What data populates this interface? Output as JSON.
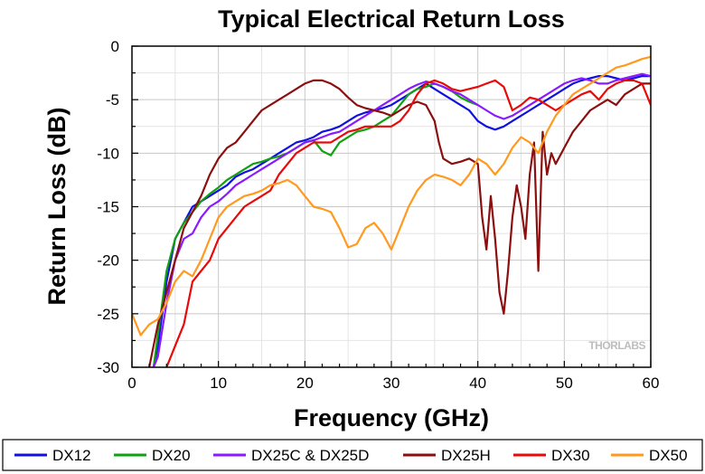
{
  "chart_data": {
    "type": "line",
    "title": "Typical Electrical Return Loss",
    "xlabel": "Frequency (GHz)",
    "ylabel": "Return Loss (dB)",
    "xlim": [
      0,
      60
    ],
    "ylim": [
      -30,
      0
    ],
    "xticks": [
      0,
      10,
      20,
      30,
      40,
      50,
      60
    ],
    "yticks": [
      0,
      -5,
      -10,
      -15,
      -20,
      -25,
      -30
    ],
    "grid": true,
    "legend_position": "bottom",
    "watermark_brand": "THORLABS",
    "series": [
      {
        "name": "DX12",
        "color": "#1010e0",
        "x": [
          2.5,
          3,
          4,
          5,
          6,
          7,
          8,
          9,
          10,
          11,
          12,
          13,
          14,
          15,
          16,
          17,
          18,
          19,
          20,
          21,
          22,
          23,
          24,
          25,
          26,
          27,
          28,
          29,
          30,
          31,
          32,
          33,
          34,
          35,
          36,
          37,
          38,
          39,
          40,
          41,
          42,
          43,
          44,
          45,
          46,
          47,
          48,
          49,
          50,
          51,
          52,
          53,
          54,
          55,
          56,
          57,
          58,
          59,
          60
        ],
        "y": [
          -30,
          -28,
          -22,
          -18,
          -16.5,
          -15,
          -14.5,
          -14,
          -13.5,
          -13,
          -12.2,
          -11.8,
          -11.5,
          -11,
          -10.5,
          -10,
          -9.5,
          -9,
          -8.8,
          -8.5,
          -8,
          -7.8,
          -7.5,
          -7,
          -6.5,
          -6.2,
          -6,
          -5.8,
          -5.5,
          -5,
          -4.5,
          -4,
          -3.5,
          -4,
          -4.5,
          -5,
          -5.5,
          -6,
          -7,
          -7.5,
          -7.8,
          -7.5,
          -7,
          -6.5,
          -6,
          -5.5,
          -5,
          -4.5,
          -4,
          -3.5,
          -3.2,
          -3,
          -2.8,
          -2.8,
          -3,
          -3.2,
          -3,
          -2.8,
          -2.8
        ]
      },
      {
        "name": "DX20",
        "color": "#10a010",
        "x": [
          2.5,
          3,
          4,
          5,
          6,
          7,
          8,
          9,
          10,
          11,
          12,
          13,
          14,
          15,
          16,
          17,
          18,
          19,
          20,
          21,
          22,
          23,
          24,
          25,
          26,
          27,
          28,
          29,
          30,
          31,
          32,
          33,
          34,
          35,
          36,
          37,
          38,
          39,
          40
        ],
        "y": [
          -30,
          -27,
          -21,
          -18,
          -16.5,
          -15.5,
          -14.5,
          -13.8,
          -13.2,
          -12.5,
          -12,
          -11.5,
          -11,
          -10.8,
          -10.5,
          -10.3,
          -10,
          -9.5,
          -9,
          -8.8,
          -9.8,
          -10.2,
          -9,
          -8.5,
          -8,
          -7.8,
          -7.5,
          -7,
          -6.5,
          -5.5,
          -4.5,
          -4,
          -3.8,
          -3.5,
          -3.8,
          -4.2,
          -4.8,
          -5.2,
          -5.5
        ]
      },
      {
        "name": "DX25C & DX25D",
        "color": "#8a1aff",
        "x": [
          2.5,
          3,
          4,
          5,
          6,
          7,
          8,
          9,
          10,
          11,
          12,
          13,
          14,
          15,
          16,
          17,
          18,
          19,
          20,
          21,
          22,
          23,
          24,
          25,
          26,
          27,
          28,
          29,
          30,
          31,
          32,
          33,
          34,
          35,
          36,
          37,
          38,
          39,
          40,
          41,
          42,
          43,
          44,
          45,
          46,
          47,
          48,
          49,
          50,
          51,
          52,
          53,
          54,
          55,
          56,
          57,
          58,
          59,
          60
        ],
        "y": [
          -30,
          -29,
          -24,
          -20,
          -18,
          -17.5,
          -16,
          -15,
          -14.5,
          -13.8,
          -13,
          -12.5,
          -12,
          -11.5,
          -11,
          -10.5,
          -10,
          -9.5,
          -9,
          -8.8,
          -8.5,
          -8.2,
          -8,
          -7.5,
          -7,
          -6.5,
          -6,
          -5.5,
          -5,
          -4.5,
          -4,
          -3.6,
          -3.3,
          -3.5,
          -3.8,
          -4.2,
          -4.5,
          -5,
          -5.5,
          -6,
          -6.5,
          -6.8,
          -6.5,
          -6,
          -5.5,
          -5,
          -4.5,
          -4,
          -3.5,
          -3.2,
          -3,
          -3.2,
          -3.5,
          -3.5,
          -3.2,
          -3,
          -2.8,
          -2.6,
          -2.8
        ]
      },
      {
        "name": "DX25H",
        "color": "#8b0f0f",
        "x": [
          2,
          3,
          4,
          5,
          6,
          7,
          8,
          9,
          10,
          11,
          12,
          13,
          14,
          15,
          16,
          17,
          18,
          19,
          20,
          21,
          22,
          23,
          24,
          25,
          26,
          27,
          28,
          29,
          30,
          31,
          32,
          33,
          34,
          35,
          35.5,
          36,
          37,
          38,
          39,
          40,
          40.5,
          41,
          41.5,
          42,
          42.5,
          43,
          43.5,
          44,
          44.5,
          45,
          45.5,
          46,
          46.5,
          47,
          47.5,
          48,
          48.5,
          49,
          50,
          51,
          52,
          53,
          54,
          55,
          56,
          57,
          58,
          59,
          60
        ],
        "y": [
          -30,
          -26,
          -23,
          -20,
          -17,
          -15.5,
          -14,
          -12,
          -10.5,
          -9.5,
          -9,
          -8,
          -7,
          -6,
          -5.5,
          -5,
          -4.5,
          -4,
          -3.5,
          -3.2,
          -3.2,
          -3.5,
          -4,
          -4.8,
          -5.5,
          -5.8,
          -6,
          -6.2,
          -6.5,
          -6,
          -5.5,
          -5.2,
          -5.5,
          -7,
          -9,
          -10.5,
          -11,
          -10.8,
          -10.5,
          -11,
          -16,
          -19,
          -14,
          -18,
          -23,
          -25,
          -21,
          -16,
          -13,
          -15,
          -18,
          -12,
          -9,
          -21,
          -8,
          -12,
          -10,
          -11,
          -9.5,
          -8,
          -7,
          -6,
          -5.5,
          -5,
          -5.5,
          -4.5,
          -4,
          -3.5,
          -3.5
        ]
      },
      {
        "name": "DX30",
        "color": "#e80a0a",
        "x": [
          4,
          5,
          6,
          7,
          8,
          9,
          10,
          11,
          12,
          13,
          14,
          15,
          16,
          17,
          18,
          19,
          20,
          21,
          22,
          23,
          24,
          25,
          26,
          27,
          28,
          29,
          30,
          31,
          32,
          33,
          34,
          35,
          36,
          37,
          38,
          39,
          40,
          41,
          42,
          43,
          44,
          45,
          46,
          47,
          48,
          49,
          50,
          51,
          52,
          53,
          54,
          55,
          56,
          57,
          58,
          59,
          60
        ],
        "y": [
          -30,
          -28,
          -26,
          -22,
          -21,
          -20,
          -18,
          -17,
          -16,
          -15,
          -14.5,
          -14,
          -13.5,
          -12,
          -11,
          -10,
          -9.5,
          -9,
          -9,
          -9,
          -8.5,
          -8,
          -7.8,
          -7.5,
          -7.5,
          -7.5,
          -7.5,
          -7,
          -6,
          -4.5,
          -3.5,
          -3.2,
          -3.5,
          -4,
          -4.2,
          -4,
          -3.8,
          -3.5,
          -3.2,
          -3.8,
          -6,
          -5.5,
          -4.8,
          -5,
          -5.5,
          -6,
          -5.5,
          -5,
          -4.5,
          -4.2,
          -5,
          -4,
          -3.5,
          -3.2,
          -3.2,
          -3.5,
          -5.5
        ]
      },
      {
        "name": "DX50",
        "color": "#ff9a1f",
        "x": [
          0,
          1,
          2,
          3,
          4,
          5,
          6,
          7,
          8,
          9,
          10,
          11,
          12,
          13,
          14,
          15,
          16,
          17,
          18,
          19,
          20,
          21,
          22,
          23,
          24,
          25,
          26,
          27,
          28,
          29,
          30,
          31,
          32,
          33,
          34,
          35,
          36,
          37,
          38,
          39,
          40,
          41,
          42,
          43,
          44,
          45,
          46,
          47,
          48,
          49,
          50,
          51,
          52,
          53,
          54,
          55,
          56,
          57,
          58,
          59,
          60
        ],
        "y": [
          -25,
          -27,
          -26,
          -25.5,
          -24,
          -22,
          -21,
          -21.5,
          -20,
          -18,
          -16,
          -15,
          -14.5,
          -14,
          -13.8,
          -13.5,
          -13,
          -12.8,
          -12.5,
          -13,
          -14,
          -15,
          -15.2,
          -15.5,
          -17,
          -18.8,
          -18.5,
          -17,
          -16.5,
          -17.5,
          -19,
          -17,
          -15,
          -13.5,
          -12.5,
          -12,
          -12.2,
          -12.5,
          -13,
          -12,
          -10.5,
          -11,
          -12,
          -11,
          -9.5,
          -8.5,
          -9,
          -10,
          -8,
          -6.5,
          -5.5,
          -4.5,
          -4,
          -3.5,
          -3,
          -2.5,
          -2,
          -1.8,
          -1.5,
          -1.2,
          -1
        ]
      }
    ]
  }
}
